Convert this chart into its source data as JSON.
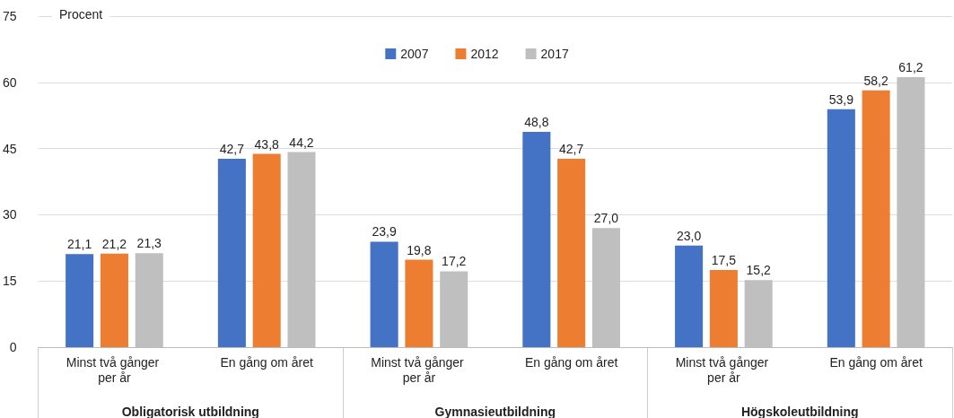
{
  "chart_data": {
    "type": "bar",
    "ylabel": "Procent",
    "categories": [
      "Minst två gånger per år",
      "En gång om året",
      "Minst två gånger per år",
      "En gång om året",
      "Minst två gånger per år",
      "En gång om året"
    ],
    "series": [
      {
        "name": "2007",
        "color": "#4472c4",
        "values": [
          21.1,
          42.7,
          23.9,
          48.8,
          23.0,
          53.9
        ],
        "value_labels": [
          "21,1",
          "42,7",
          "23,9",
          "48,8",
          "23,0",
          "53,9"
        ]
      },
      {
        "name": "2012",
        "color": "#ed7d31",
        "values": [
          21.2,
          43.8,
          19.8,
          42.7,
          17.5,
          58.2
        ],
        "value_labels": [
          "21,2",
          "43,8",
          "19,8",
          "42,7",
          "17,5",
          "58,2"
        ]
      },
      {
        "name": "2017",
        "color": "#bfbfbf",
        "values": [
          21.3,
          44.2,
          17.2,
          27.0,
          15.2,
          61.2
        ],
        "value_labels": [
          "21,3",
          "44,2",
          "17,2",
          "27,0",
          "15,2",
          "61,2"
        ]
      }
    ],
    "annotations": [
      "Obligatorisk utbildning",
      "Gymnasieutbildning",
      "Högskoleutbildning"
    ],
    "ylim": [
      0,
      75
    ],
    "yticks": [
      0,
      15,
      30,
      45,
      60,
      75
    ],
    "grid": "y",
    "legend": "top"
  }
}
